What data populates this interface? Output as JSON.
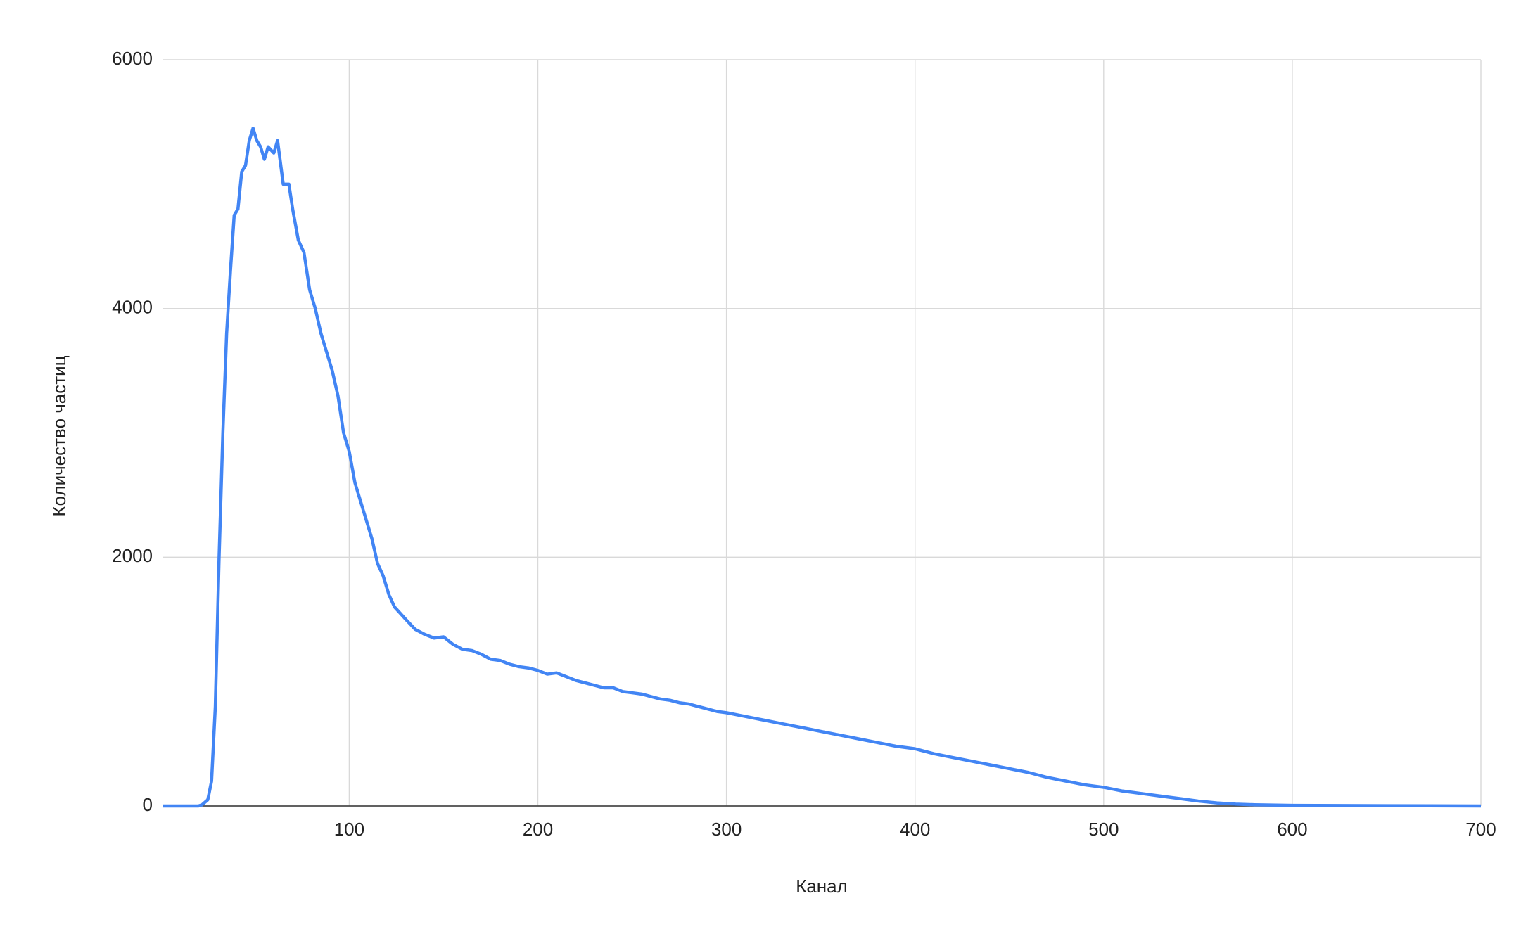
{
  "chart_data": {
    "type": "line",
    "x_label": "Канал",
    "y_label": "Количество частиц",
    "x": [
      1,
      10,
      20,
      22,
      25,
      27,
      29,
      31,
      33,
      35,
      37,
      39,
      41,
      43,
      45,
      47,
      49,
      51,
      53,
      55,
      57,
      60,
      62,
      65,
      68,
      70,
      73,
      76,
      79,
      82,
      85,
      88,
      91,
      94,
      97,
      100,
      103,
      106,
      109,
      112,
      115,
      118,
      121,
      124,
      127,
      130,
      135,
      140,
      145,
      150,
      155,
      160,
      165,
      170,
      175,
      180,
      185,
      190,
      195,
      200,
      205,
      210,
      215,
      220,
      225,
      230,
      235,
      240,
      245,
      250,
      255,
      260,
      265,
      270,
      275,
      280,
      285,
      290,
      295,
      300,
      310,
      320,
      330,
      340,
      350,
      360,
      370,
      380,
      390,
      400,
      410,
      420,
      430,
      440,
      450,
      460,
      470,
      480,
      490,
      500,
      510,
      520,
      530,
      540,
      550,
      560,
      570,
      580,
      600,
      650,
      700
    ],
    "series": [
      {
        "name": "Количество частиц",
        "color": "#4285f4",
        "values": [
          0,
          0,
          0,
          10,
          50,
          200,
          800,
          2000,
          3000,
          3800,
          4300,
          4750,
          4800,
          5100,
          5150,
          5350,
          5450,
          5350,
          5300,
          5200,
          5300,
          5250,
          5350,
          5000,
          5000,
          4800,
          4550,
          4450,
          4150,
          4000,
          3800,
          3650,
          3500,
          3300,
          3000,
          2850,
          2600,
          2450,
          2300,
          2150,
          1950,
          1850,
          1700,
          1600,
          1550,
          1500,
          1420,
          1380,
          1350,
          1360,
          1300,
          1260,
          1250,
          1220,
          1180,
          1170,
          1140,
          1120,
          1110,
          1090,
          1060,
          1070,
          1040,
          1010,
          990,
          970,
          950,
          950,
          920,
          910,
          900,
          880,
          860,
          850,
          830,
          820,
          800,
          780,
          760,
          750,
          720,
          690,
          660,
          630,
          600,
          570,
          540,
          510,
          480,
          460,
          420,
          390,
          360,
          330,
          300,
          270,
          230,
          200,
          170,
          150,
          120,
          100,
          80,
          60,
          40,
          25,
          15,
          10,
          5,
          2,
          0
        ]
      }
    ],
    "xlim": [
      1,
      700
    ],
    "ylim": [
      0,
      6000
    ],
    "xticks": [
      100,
      200,
      300,
      400,
      500,
      600,
      700
    ],
    "yticks": [
      0,
      2000,
      4000,
      6000
    ],
    "grid": true
  }
}
